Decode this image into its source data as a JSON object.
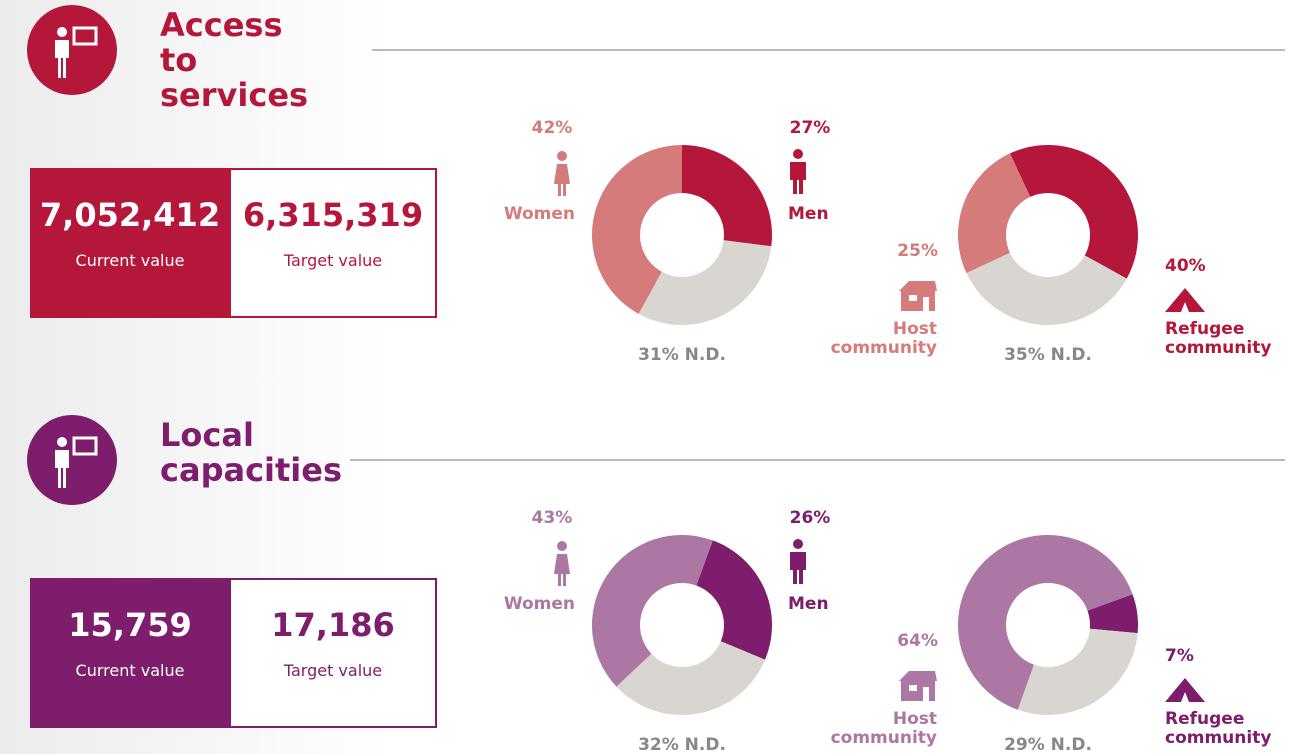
{
  "sections": [
    {
      "title": "Access to services",
      "colors": {
        "dark": "#b5173b",
        "light": "#d57b7b",
        "nd": "#d9d6d2"
      },
      "current": {
        "value": "7,052,412",
        "label": "Current value"
      },
      "target": {
        "value": "6,315,319",
        "label": "Target value"
      },
      "gender": {
        "segments": [
          {
            "name": "Men",
            "value": 27,
            "value_label": "27%"
          },
          {
            "value": 31,
            "value_label": "31% N.D."
          },
          {
            "name": "Women",
            "value": 42,
            "value_label": "42%"
          }
        ]
      },
      "community": {
        "segments": [
          {
            "name": "Refugee community",
            "value": 40,
            "value_label": "40%"
          },
          {
            "value": 35,
            "value_label": "35% N.D."
          },
          {
            "name": "Host community",
            "value": 25,
            "value_label": "25%"
          }
        ]
      }
    },
    {
      "title": "Local capacities",
      "colors": {
        "dark": "#7d1d6b",
        "light": "#ac78a3",
        "nd": "#d9d6d2"
      },
      "current": {
        "value": "15,759",
        "label": "Current value"
      },
      "target": {
        "value": "17,186",
        "label": "Target value"
      },
      "gender": {
        "segments": [
          {
            "name": "Men",
            "value": 26,
            "value_label": "26%"
          },
          {
            "value": 32,
            "value_label": "32% N.D."
          },
          {
            "name": "Women",
            "value": 43,
            "value_label": "43%"
          }
        ]
      },
      "community": {
        "segments": [
          {
            "name": "Refugee community",
            "value": 7,
            "value_label": "7%"
          },
          {
            "value": 29,
            "value_label": "29% N.D."
          },
          {
            "name": "Host community",
            "value": 64,
            "value_label": "64%"
          }
        ]
      }
    }
  ]
}
